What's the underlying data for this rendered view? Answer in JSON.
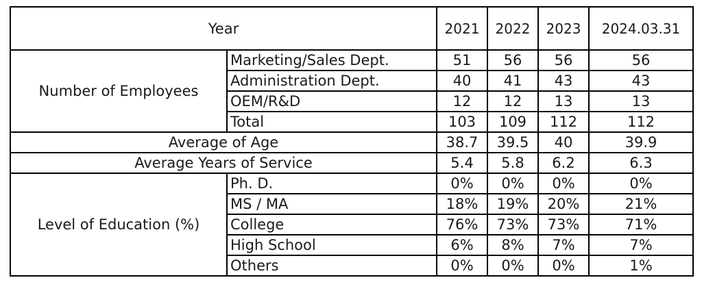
{
  "header": {
    "label": "Year",
    "years": [
      "2021",
      "2022",
      "2023",
      "2024.03.31"
    ]
  },
  "employees": {
    "label": "Number of Employees",
    "rows": [
      {
        "label": "Marketing/Sales Dept.",
        "values": [
          "51",
          "56",
          "56",
          "56"
        ]
      },
      {
        "label": "Administration Dept.",
        "values": [
          "40",
          "41",
          "43",
          "43"
        ]
      },
      {
        "label": "OEM/R&D",
        "values": [
          "12",
          "12",
          "13",
          "13"
        ]
      },
      {
        "label": "Total",
        "values": [
          "103",
          "109",
          "112",
          "112"
        ]
      }
    ]
  },
  "age": {
    "label": "Average of Age",
    "values": [
      "38.7",
      "39.5",
      "40",
      "39.9"
    ]
  },
  "service": {
    "label": "Average Years of Service",
    "values": [
      "5.4",
      "5.8",
      "6.2",
      "6.3"
    ]
  },
  "education": {
    "label": "Level of Education (%)",
    "rows": [
      {
        "label": "Ph. D.",
        "values": [
          "0%",
          "0%",
          "0%",
          "0%"
        ]
      },
      {
        "label": "MS / MA",
        "values": [
          "18%",
          "19%",
          "20%",
          "21%"
        ]
      },
      {
        "label": "College",
        "values": [
          "76%",
          "73%",
          "73%",
          "71%"
        ]
      },
      {
        "label": "High School",
        "values": [
          "6%",
          "8%",
          "7%",
          "7%"
        ]
      },
      {
        "label": "Others",
        "values": [
          "0%",
          "0%",
          "0%",
          "1%"
        ]
      }
    ]
  }
}
